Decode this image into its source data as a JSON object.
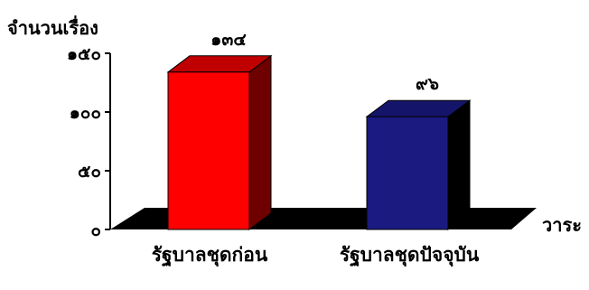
{
  "chart_data": {
    "type": "bar",
    "title": "",
    "ylabel": "จำนวนเรื่อง",
    "xlabel": "วาระ",
    "categories": [
      "รัฐบาลชุดก่อน",
      "รัฐบาลชุดปัจจุบัน"
    ],
    "values": [
      134,
      96
    ],
    "value_labels": [
      "๑๓๔",
      "๙๖"
    ],
    "ylim": [
      0,
      150
    ],
    "yticks": [
      0,
      50,
      100,
      150
    ],
    "ytick_labels": [
      "๐",
      "๕๐",
      "๑๐๐",
      "๑๕๐"
    ],
    "grid": false,
    "legend": "none",
    "three_d": true,
    "colors": {
      "bar_front": [
        "#ff0000",
        "#1a1a80"
      ],
      "bar_top": [
        "#c00000",
        "#14146a"
      ],
      "bar_side": [
        "#6e0000",
        "#000000"
      ],
      "floor": "#000000",
      "axis": "#000000"
    }
  }
}
